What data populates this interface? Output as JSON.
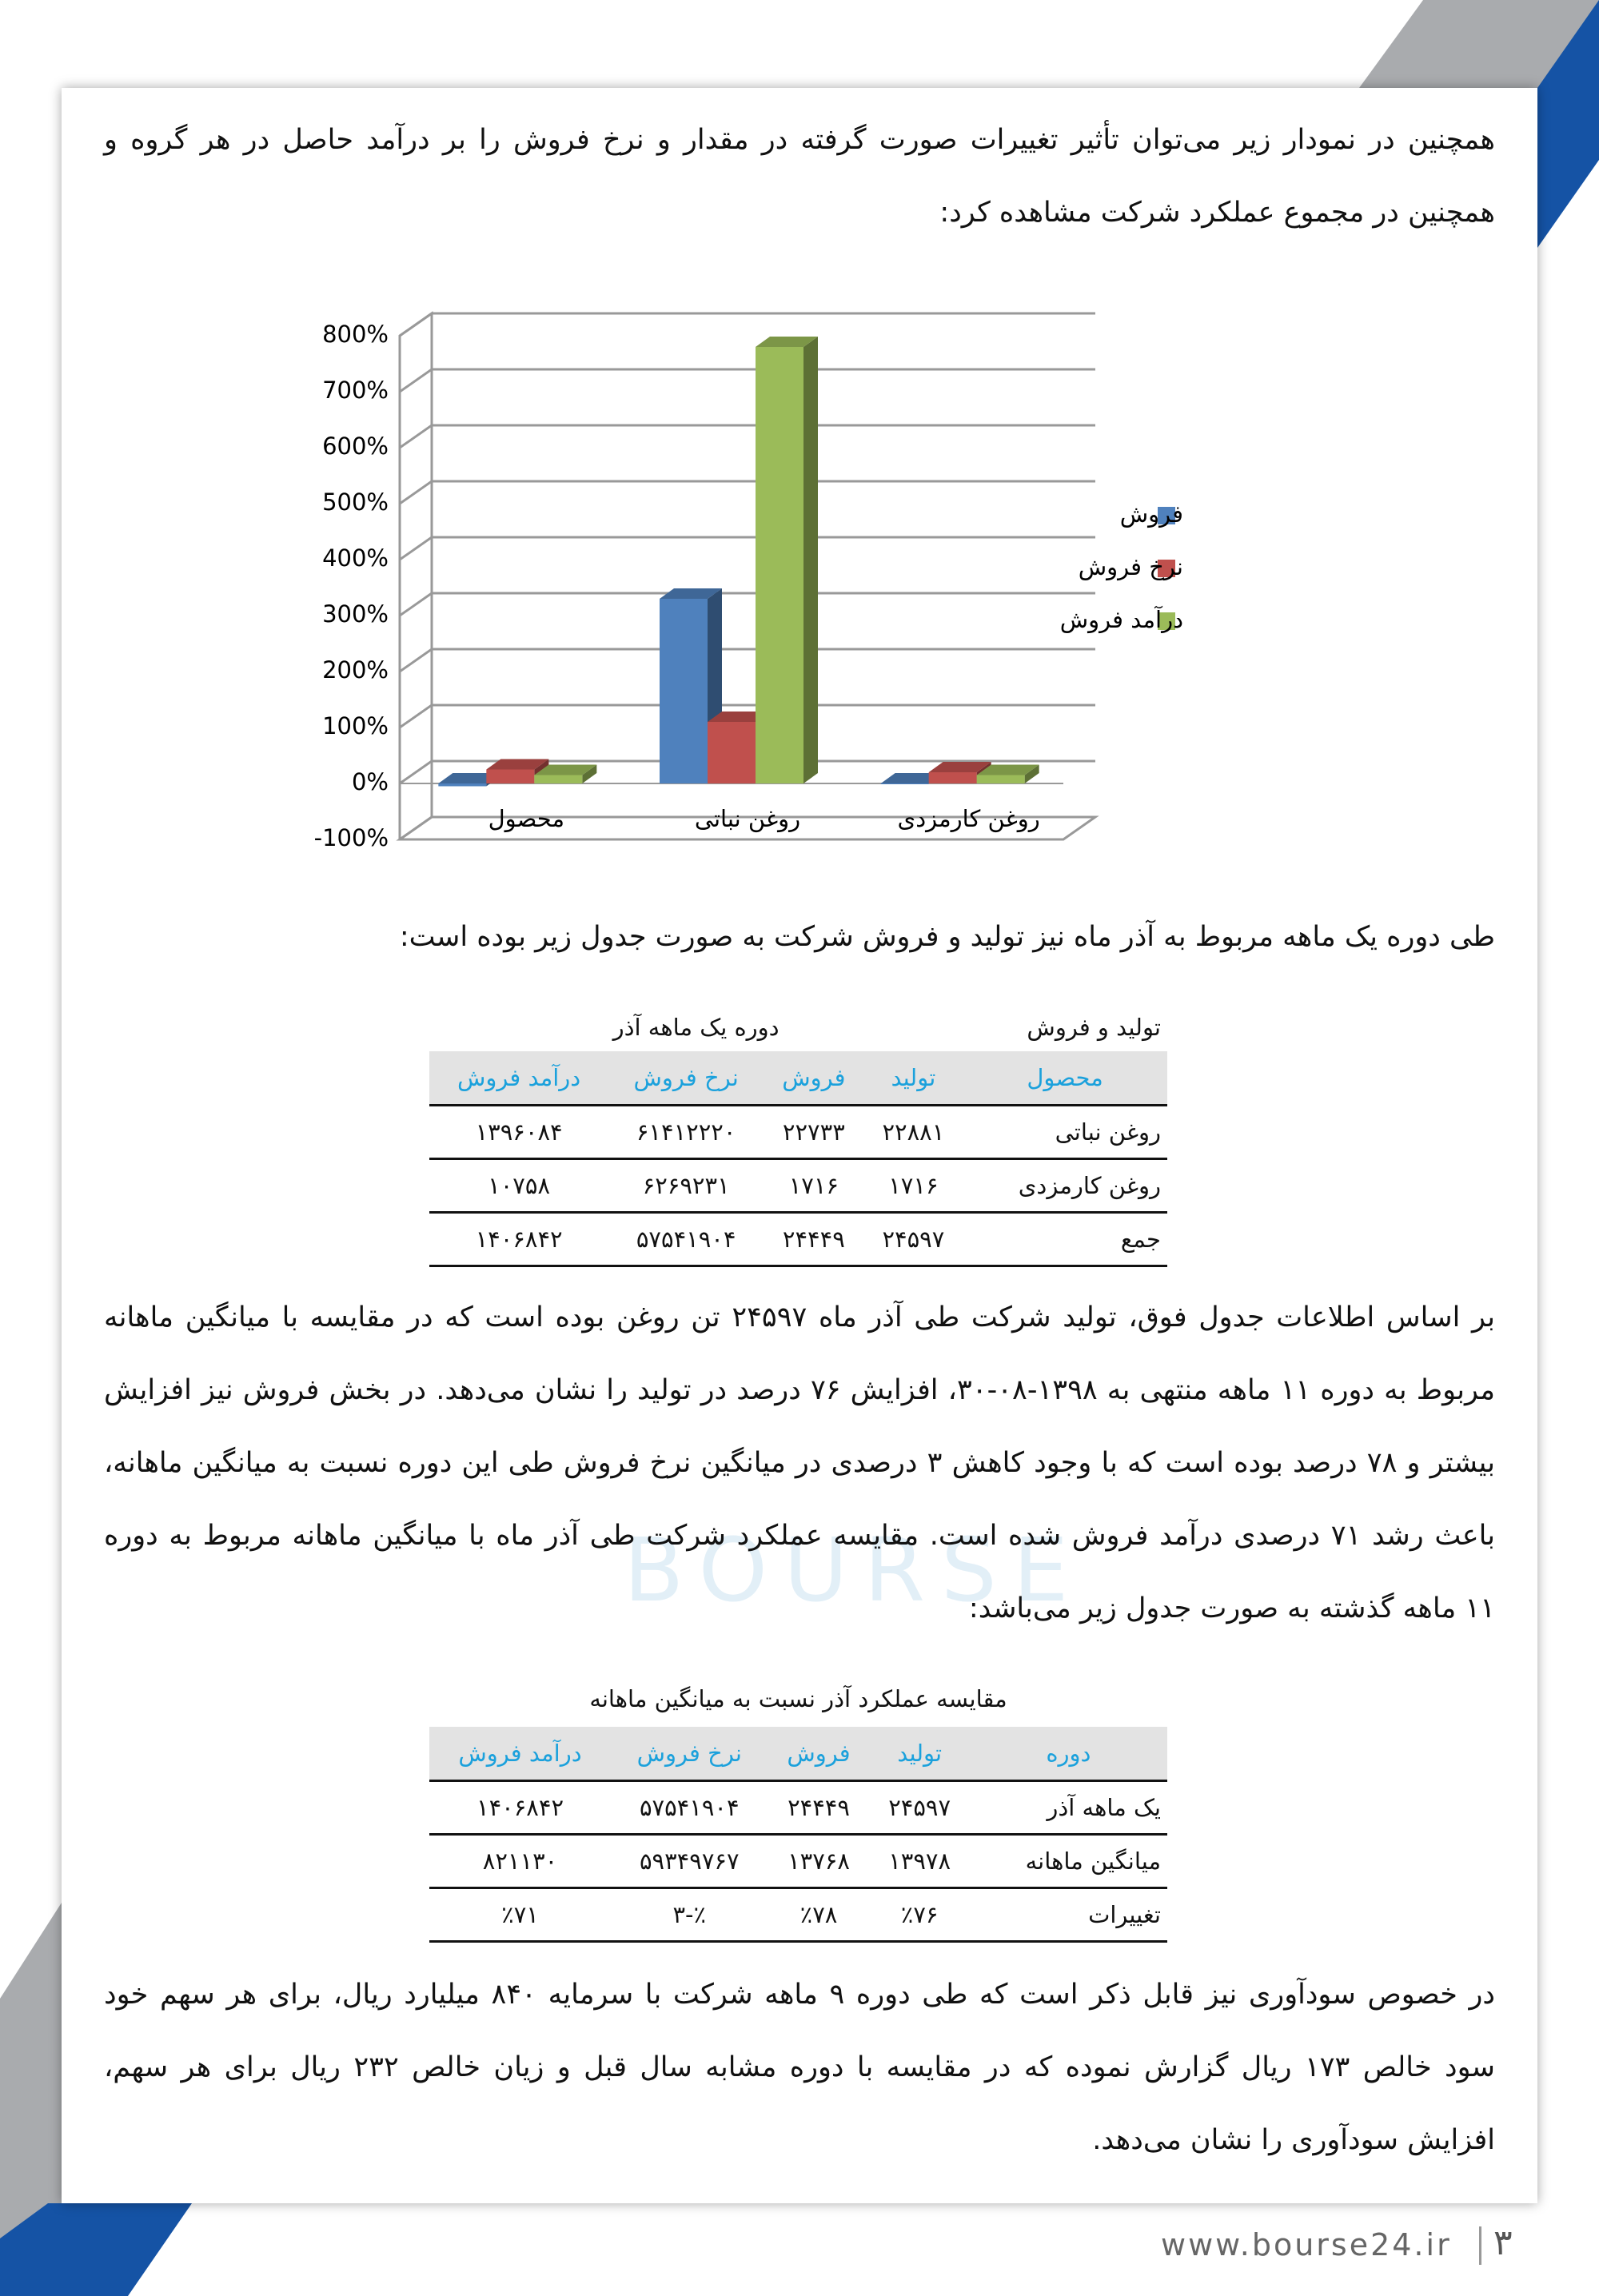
{
  "paragraphs": [
    "همچنین در نمودار زیر می‌توان تأثیر تغییرات صورت گرفته در مقدار و نرخ فروش را بر درآمد حاصل در هر گروه و همچنین در مجموع عملکرد شرکت مشاهده کرد:",
    "طی دوره یک ماهه مربوط به آذر ماه نیز تولید و فروش شرکت به صورت جدول زیر بوده است:",
    "بر اساس اطلاعات جدول فوق، تولید شرکت طی آذر ماه ۲۴۵۹۷ تن روغن بوده است که در مقایسه با میانگین ماهانه مربوط به دوره ۱۱ ماهه منتهی به ۱۳۹۸-۰۸-۳۰، افزایش ۷۶ درصد در تولید را نشان می‌دهد. در بخش فروش نیز افزایش بیشتر و ۷۸ درصد بوده است که با وجود کاهش ۳ درصدی در میانگین نرخ فروش طی این دوره نسبت به میانگین ماهانه، باعث رشد ۷۱ درصدی درآمد فروش شده است. مقایسه عملکرد شرکت طی آذر ماه با میانگین ماهانه مربوط به دوره ۱۱ ماهه گذشته به صورت جدول زیر می‌باشد:",
    "در خصوص سودآوری نیز قابل ذکر است که طی دوره ۹ ماهه شرکت با سرمایه ۸۴۰ میلیارد ریال، برای هر سهم خود سود خالص ۱۷۳ ریال گزارش نموده که در مقایسه با دوره مشابه سال قبل و زیان خالص ۲۳۲ ریال برای هر سهم، افزایش سودآوری را نشان می‌دهد."
  ],
  "chart_data": {
    "type": "bar3d",
    "categories": [
      "محصول",
      "روغن نباتی",
      "روغن کارمزدی"
    ],
    "series": [
      {
        "name": "فروش",
        "color": "#4f81bd",
        "values": [
          -5,
          330,
          0
        ]
      },
      {
        "name": "نرخ فروش",
        "color": "#c0504d",
        "values": [
          25,
          110,
          20
        ]
      },
      {
        "name": "درآمد فروش",
        "color": "#9bbb59",
        "values": [
          15,
          780,
          15
        ]
      }
    ],
    "ylim": [
      -100,
      800
    ],
    "yticks": [
      {
        "value": -100,
        "label": "-100%"
      },
      {
        "value": 0,
        "label": "0%"
      },
      {
        "value": 100,
        "label": "100%"
      },
      {
        "value": 200,
        "label": "200%"
      },
      {
        "value": 300,
        "label": "300%"
      },
      {
        "value": 400,
        "label": "400%"
      },
      {
        "value": 500,
        "label": "500%"
      },
      {
        "value": 600,
        "label": "600%"
      },
      {
        "value": 700,
        "label": "700%"
      },
      {
        "value": 800,
        "label": "800%"
      }
    ],
    "grid": true,
    "legend": "right"
  },
  "table1": {
    "caption": [
      "تولید و فروش",
      "دوره یک ماهه آذر"
    ],
    "header": [
      "محصول",
      "تولید",
      "فروش",
      "نرخ فروش",
      "درآمد فروش"
    ],
    "rows": [
      [
        "روغن نباتی",
        "۲۲۸۸۱",
        "۲۲۷۳۳",
        "۶۱۴۱۲۲۲۰",
        "۱۳۹۶۰۸۴"
      ],
      [
        "روغن کارمزدی",
        "۱۷۱۶",
        "۱۷۱۶",
        "۶۲۶۹۲۳۱",
        "۱۰۷۵۸"
      ],
      [
        "جمع",
        "۲۴۵۹۷",
        "۲۴۴۴۹",
        "۵۷۵۴۱۹۰۴",
        "۱۴۰۶۸۴۲"
      ]
    ]
  },
  "table2": {
    "caption": "مقایسه عملکرد آذر نسبت به میانگین ماهانه",
    "header": [
      "دوره",
      "تولید",
      "فروش",
      "نرخ فروش",
      "درآمد فروش"
    ],
    "rows": [
      [
        "یک ماهه آذر",
        "۲۴۵۹۷",
        "۲۴۴۴۹",
        "۵۷۵۴۱۹۰۴",
        "۱۴۰۶۸۴۲"
      ],
      [
        "میانگین ماهانه",
        "۱۳۹۷۸",
        "۱۳۷۶۸",
        "۵۹۳۴۹۷۶۷",
        "۸۲۱۱۳۰"
      ],
      [
        "تغییرات",
        "٪۷۶",
        "٪۷۸",
        "٪-۳",
        "٪۷۱"
      ]
    ]
  },
  "watermark": "BOURSE",
  "footer": {
    "url": "www.bourse24.ir",
    "page": "۳"
  }
}
